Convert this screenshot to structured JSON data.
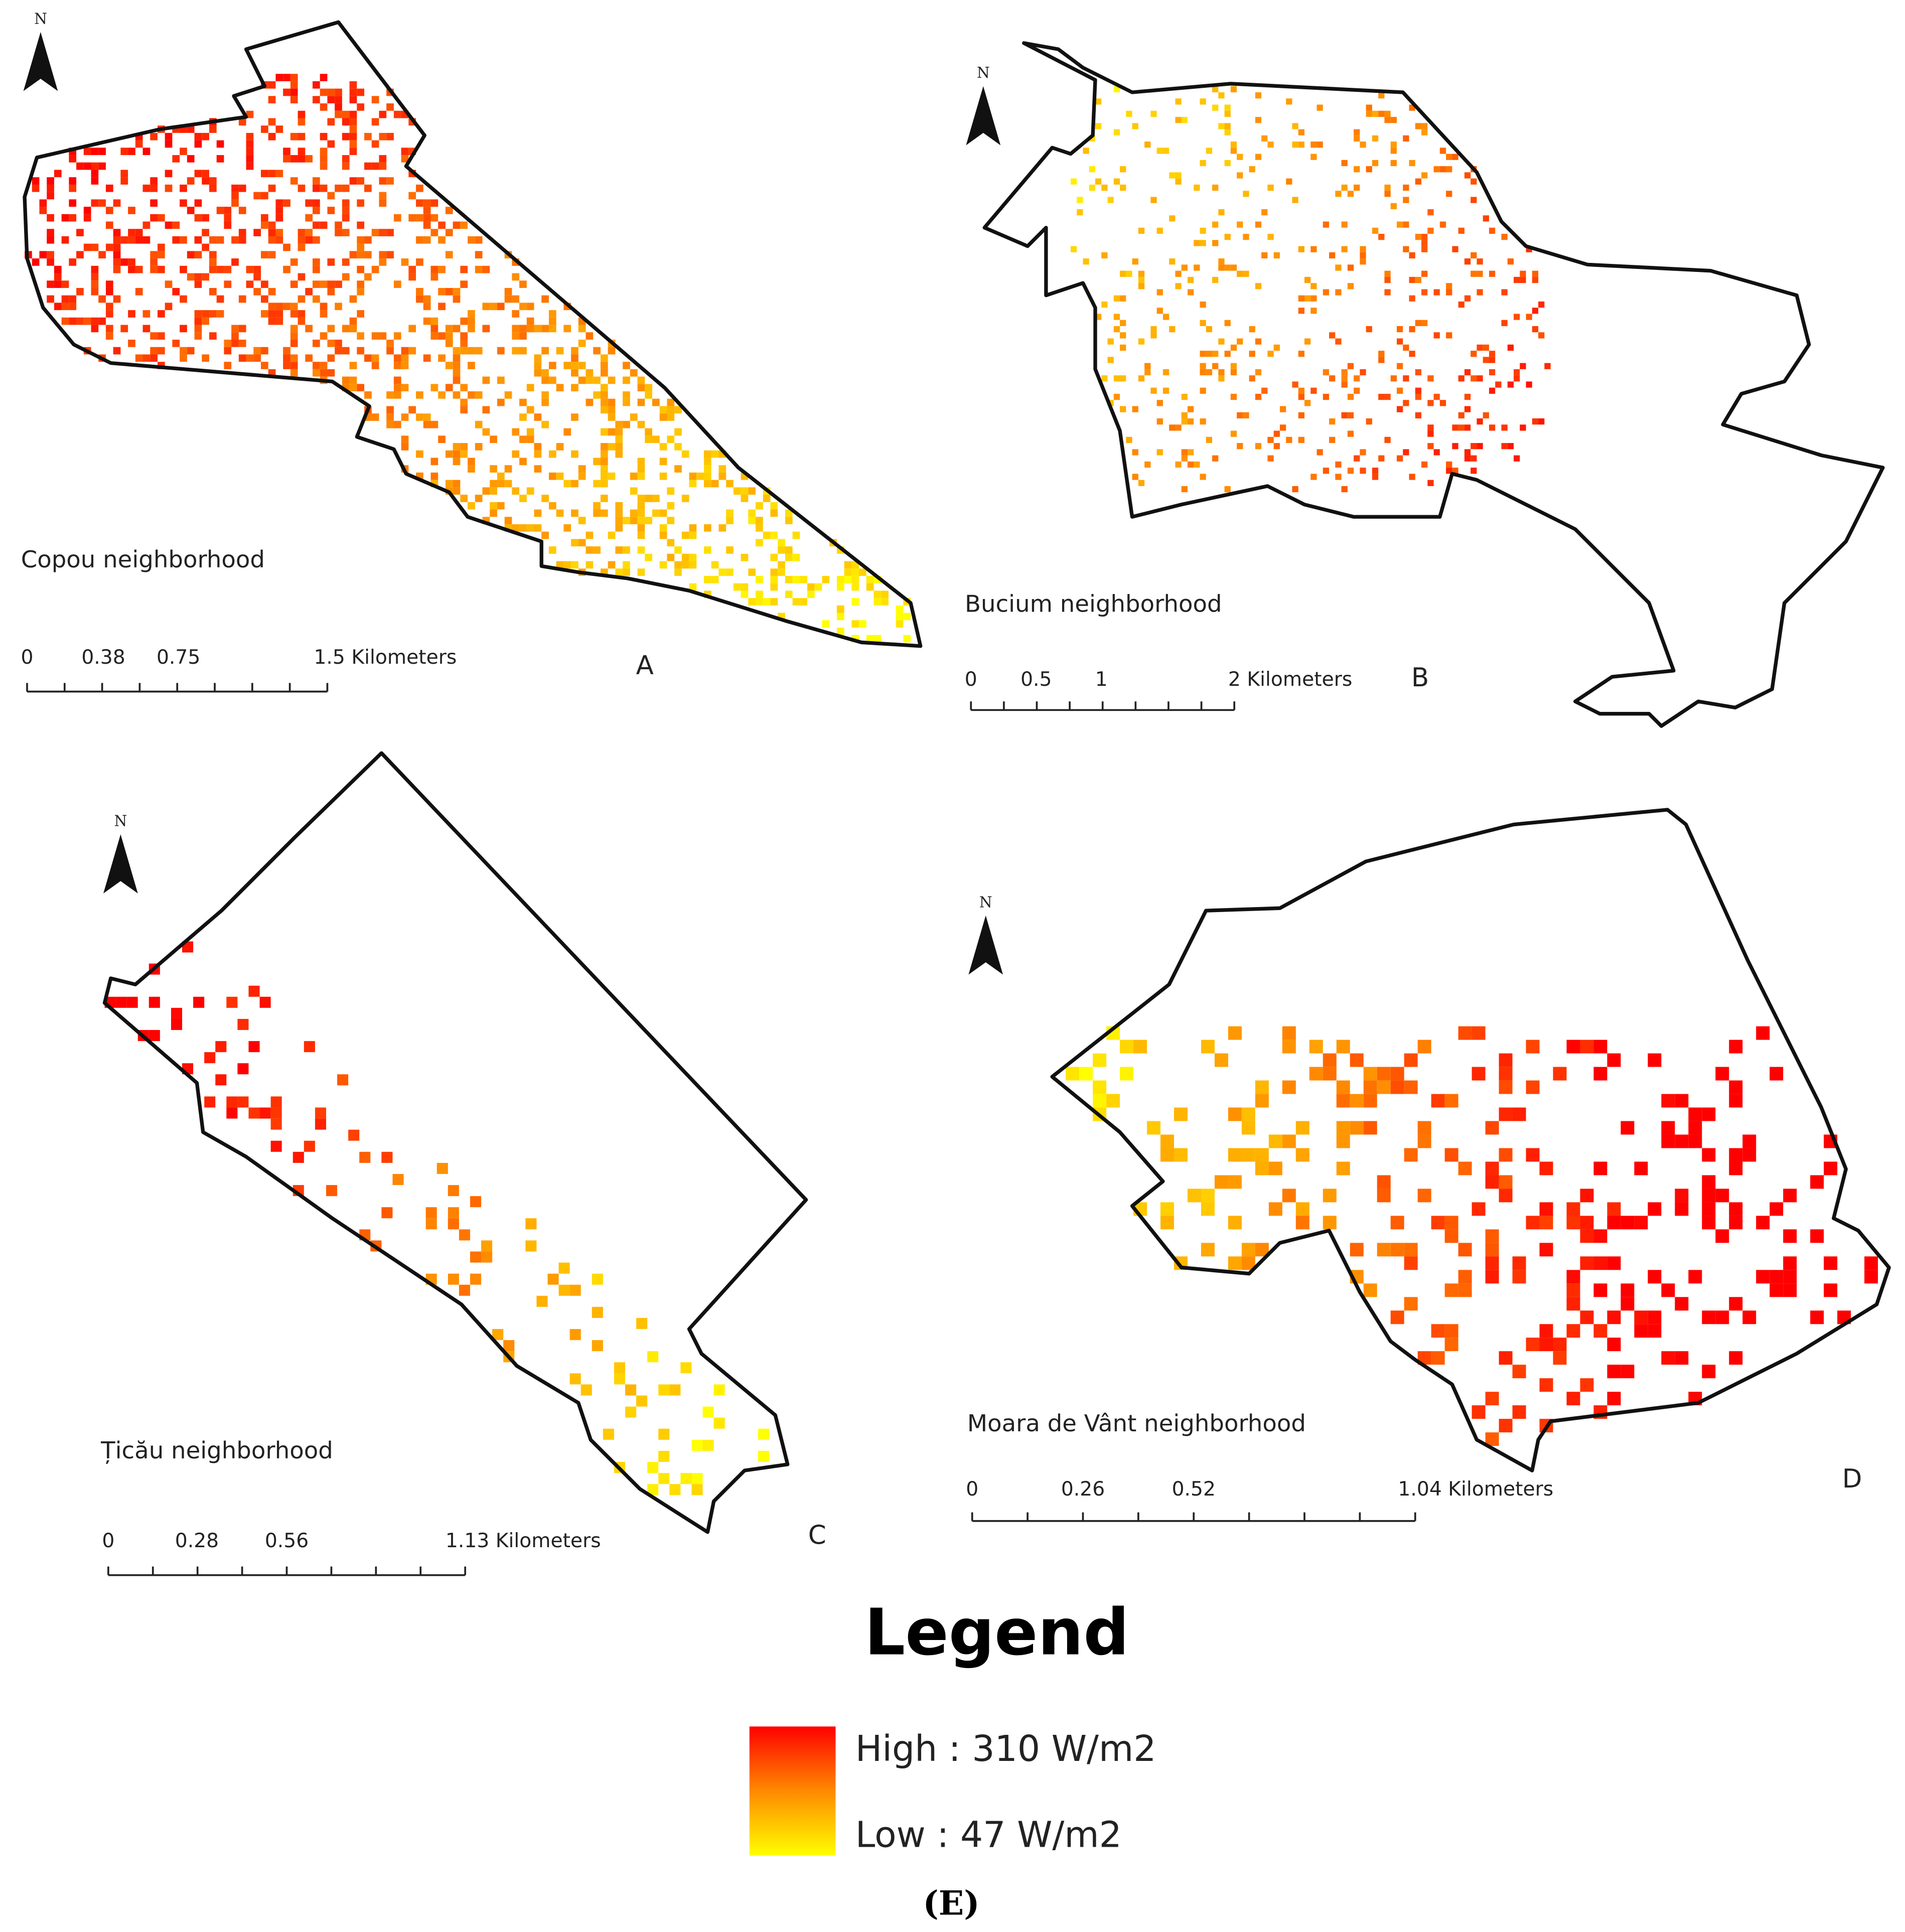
{
  "panels": [
    {
      "north": "N",
      "name": "Copou neighborhood",
      "letter": "A",
      "scale": [
        "0",
        "0.38",
        "0.75",
        "1.5 Kilometers"
      ]
    },
    {
      "north": "N",
      "name": "Bucium neighborhood",
      "letter": "B",
      "scale": [
        "0",
        "0.5",
        "1",
        "2 Kilometers"
      ]
    },
    {
      "north": "N",
      "name": "Țicău neighborhood",
      "letter": "C",
      "scale": [
        "0",
        "0.28",
        "0.56",
        "1.13 Kilometers"
      ]
    },
    {
      "north": "N",
      "name": "Moara de Vânt neighborhood",
      "letter": "D",
      "scale": [
        "0",
        "0.26",
        "0.52",
        "1.04 Kilometers"
      ]
    }
  ],
  "legend": {
    "title": "Legend",
    "high": "High : 310 W/m2",
    "low": "Low : 47 W/m2"
  },
  "caption": "(E)"
}
